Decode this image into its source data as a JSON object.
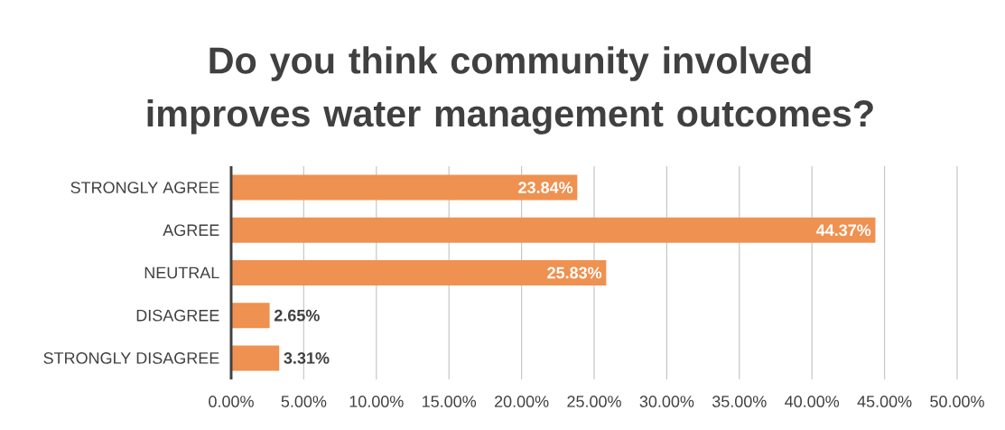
{
  "chart_data": {
    "type": "bar",
    "orientation": "horizontal",
    "title": "Do you think community involved improves water management outcomes?",
    "categories": [
      "STRONGLY AGREE",
      "AGREE",
      "NEUTRAL",
      "DISAGREE",
      "STRONGLY DISAGREE"
    ],
    "values": [
      23.84,
      44.37,
      25.83,
      2.65,
      3.31
    ],
    "value_labels": [
      "23.84%",
      "44.37%",
      "25.83%",
      "2.65%",
      "3.31%"
    ],
    "color": "#ef9150",
    "xlim": [
      0,
      50
    ],
    "xticks": [
      {
        "value": 0,
        "label": "0.00%"
      },
      {
        "value": 5,
        "label": "5.00%"
      },
      {
        "value": 10,
        "label": "10.00%"
      },
      {
        "value": 15,
        "label": "15.00%"
      },
      {
        "value": 20,
        "label": "20.00%"
      },
      {
        "value": 25,
        "label": "25.00%"
      },
      {
        "value": 30,
        "label": "30.00%"
      },
      {
        "value": 35,
        "label": "35.00%"
      },
      {
        "value": 40,
        "label": "40.00%"
      },
      {
        "value": 45,
        "label": "45.00%"
      },
      {
        "value": 50,
        "label": "50.00%"
      }
    ],
    "grid": "x"
  }
}
